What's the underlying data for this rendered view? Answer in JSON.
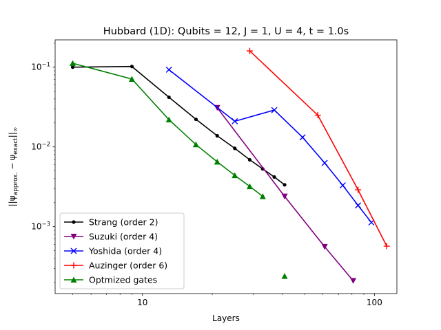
{
  "chart_data": {
    "type": "line",
    "title": "Hubbard (1D): Qubits = 12, J = 1, U = 4, t = 1.0s",
    "xlabel": "Layers",
    "ylabel": "||ψapprox. − ψexact||∞",
    "ylabel_parts": {
      "open": "||ψ",
      "sub1": "approx.",
      "mid": " − ψ",
      "sub2": "exact",
      "close": "||",
      "sub3": "∞"
    },
    "xscale": "log",
    "yscale": "log",
    "xlim": [
      4.2,
      125
    ],
    "ylim": [
      0.000145,
      0.22
    ],
    "xticks": [
      {
        "value": 10,
        "label": "10"
      },
      {
        "value": 100,
        "label": "100"
      }
    ],
    "yticks": [
      {
        "value": 0.1,
        "base": "10",
        "exp": "−1"
      },
      {
        "value": 0.01,
        "base": "10",
        "exp": "−2"
      },
      {
        "value": 0.001,
        "base": "10",
        "exp": "−3"
      }
    ],
    "grid": false,
    "legend_position": "lower-left",
    "series": [
      {
        "name": "Strang (order 2)",
        "color": "#000000",
        "marker": "dot",
        "x": [
          5,
          9,
          13,
          17,
          21,
          25,
          29,
          33,
          37,
          41
        ],
        "y": [
          0.1,
          0.102,
          0.042,
          0.0222,
          0.0138,
          0.0096,
          0.0069,
          0.0053,
          0.0042,
          0.00335
        ]
      },
      {
        "name": "Suzuki (order 4)",
        "color": "#800080",
        "marker": "triangle-down",
        "x": [
          21,
          41,
          61,
          81
        ],
        "y": [
          0.031,
          0.0024,
          0.00056,
          0.00021
        ]
      },
      {
        "name": "Yoshida (order 4)",
        "color": "#0000ff",
        "marker": "x",
        "x": [
          13,
          25,
          37,
          49,
          61,
          73,
          85,
          97
        ],
        "y": [
          0.093,
          0.021,
          0.029,
          0.0132,
          0.0063,
          0.0033,
          0.00185,
          0.00113
        ]
      },
      {
        "name": "Auzinger (order 6)",
        "color": "#ff0000",
        "marker": "plus",
        "x": [
          29,
          57,
          85,
          113
        ],
        "y": [
          0.16,
          0.025,
          0.0029,
          0.00057
        ]
      },
      {
        "name": "Optmized gates",
        "color": "#008000",
        "marker": "triangle-up",
        "x": [
          5,
          9,
          13,
          17,
          21,
          25,
          29,
          33,
          41
        ],
        "y": [
          0.112,
          0.071,
          0.022,
          0.0107,
          0.0065,
          0.0044,
          0.0032,
          0.0024,
          0.00024
        ],
        "connected_count": 8
      }
    ]
  }
}
